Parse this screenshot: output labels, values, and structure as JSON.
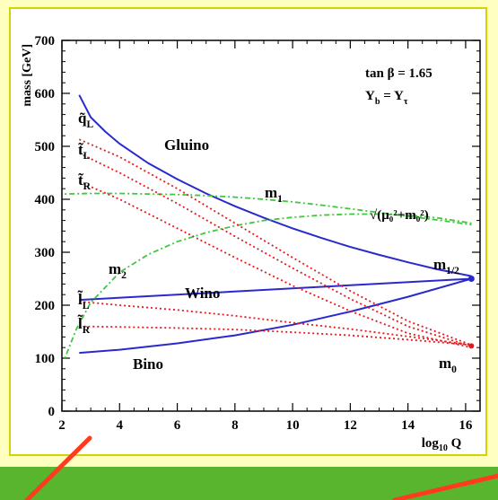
{
  "colors": {
    "slide_bg": "#ffffc0",
    "frame": "#d4d400",
    "band": "#5ab52e",
    "pointer": "#ff3b1f",
    "gaugino": "#2a2acc",
    "sfermion": "#e8181c",
    "higgs": "#3ec83e"
  },
  "chart_data": {
    "type": "line",
    "title": "",
    "xlabel": "log",
    "xlabel_sub": "10",
    "xlabel_tail": " Q",
    "ylabel": "mass [GeV]",
    "xlim": [
      2,
      16.5
    ],
    "ylim": [
      0,
      700
    ],
    "xticks": [
      2,
      4,
      6,
      8,
      10,
      12,
      14,
      16
    ],
    "yticks": [
      0,
      100,
      200,
      300,
      400,
      500,
      600,
      700
    ],
    "annotations": {
      "tanb": "tan β = 1.65",
      "yukawa_main": "Y",
      "yukawa_sub1": "b",
      "yukawa_eq": " = Y",
      "yukawa_sub2": "τ",
      "gluino": "Gluino",
      "wino": "Wino",
      "bino": "Bino",
      "m1": "m",
      "m1_sub": "1",
      "m2": "m",
      "m2_sub": "2",
      "mhalf": "m",
      "mhalf_sub": "1/2",
      "m0": "m",
      "m0_sub": "0",
      "mu_label": "√(μ₀²+m₀²)",
      "qL": "q̃",
      "qL_sub": "L",
      "tL": "t̃",
      "tL_sub": "L",
      "tR": "t̃",
      "tR_sub": "R",
      "lL": "l̃",
      "lL_sub": "L",
      "lR": "l̃",
      "lR_sub": "R"
    },
    "series": [
      {
        "style": "solid",
        "color": "#2a2acc",
        "x": [
          2.6,
          3.0,
          3.5,
          4,
          5,
          6,
          7,
          8,
          9,
          10,
          11,
          12,
          13,
          14,
          15,
          16.2
        ],
        "y": [
          597,
          555,
          528,
          505,
          468,
          438,
          411,
          387,
          365,
          345,
          327,
          310,
          295,
          281,
          268,
          255
        ]
      },
      {
        "style": "solid",
        "color": "#2a2acc",
        "x": [
          2.6,
          16.2
        ],
        "y": [
          210,
          250
        ]
      },
      {
        "style": "solid",
        "color": "#2a2acc",
        "x": [
          2.6,
          4,
          6,
          8,
          10,
          12,
          14,
          16.2
        ],
        "y": [
          110,
          116,
          128,
          143,
          163,
          188,
          216,
          250
        ]
      },
      {
        "style": "dotted",
        "color": "#3ec83e",
        "x": [
          2.1,
          3,
          4,
          5,
          6,
          7,
          8,
          9,
          10,
          11,
          12,
          13,
          14,
          15,
          16.2
        ],
        "y": [
          410,
          411,
          411,
          410,
          409,
          407,
          404,
          400,
          395,
          389,
          382,
          375,
          368,
          361,
          352
        ]
      },
      {
        "style": "dotted",
        "color": "#3ec83e",
        "x": [
          2.1,
          2.5,
          3,
          4,
          5,
          6,
          7,
          8,
          9,
          10,
          11,
          12,
          13,
          14,
          15,
          16.2
        ],
        "y": [
          100,
          155,
          205,
          262,
          296,
          320,
          337,
          350,
          360,
          366,
          370,
          372,
          372,
          370,
          365,
          355
        ]
      },
      {
        "style": "dotted",
        "color": "#e8181c",
        "x": [
          2.6,
          4,
          6,
          8,
          10,
          12,
          14,
          16.2
        ],
        "y": [
          513,
          480,
          420,
          355,
          290,
          227,
          170,
          125
        ]
      },
      {
        "style": "dotted",
        "color": "#e8181c",
        "x": [
          2.6,
          4,
          6,
          8,
          10,
          12,
          14,
          16.2
        ],
        "y": [
          487,
          450,
          392,
          330,
          270,
          212,
          160,
          122
        ]
      },
      {
        "style": "dotted",
        "color": "#e8181c",
        "x": [
          2.6,
          4,
          6,
          8,
          10,
          12,
          14,
          16.2
        ],
        "y": [
          433,
          400,
          345,
          290,
          237,
          189,
          147,
          120
        ]
      },
      {
        "style": "dotted",
        "color": "#e8181c",
        "x": [
          2.6,
          4,
          6,
          8,
          10,
          12,
          14,
          16.2
        ],
        "y": [
          207,
          200,
          191,
          180,
          167,
          155,
          141,
          125
        ]
      },
      {
        "style": "dotted",
        "color": "#e8181c",
        "x": [
          2.6,
          4,
          6,
          8,
          10,
          12,
          14,
          16.2
        ],
        "y": [
          160,
          159,
          157,
          154,
          149,
          143,
          135,
          125
        ]
      }
    ],
    "grid": false
  }
}
